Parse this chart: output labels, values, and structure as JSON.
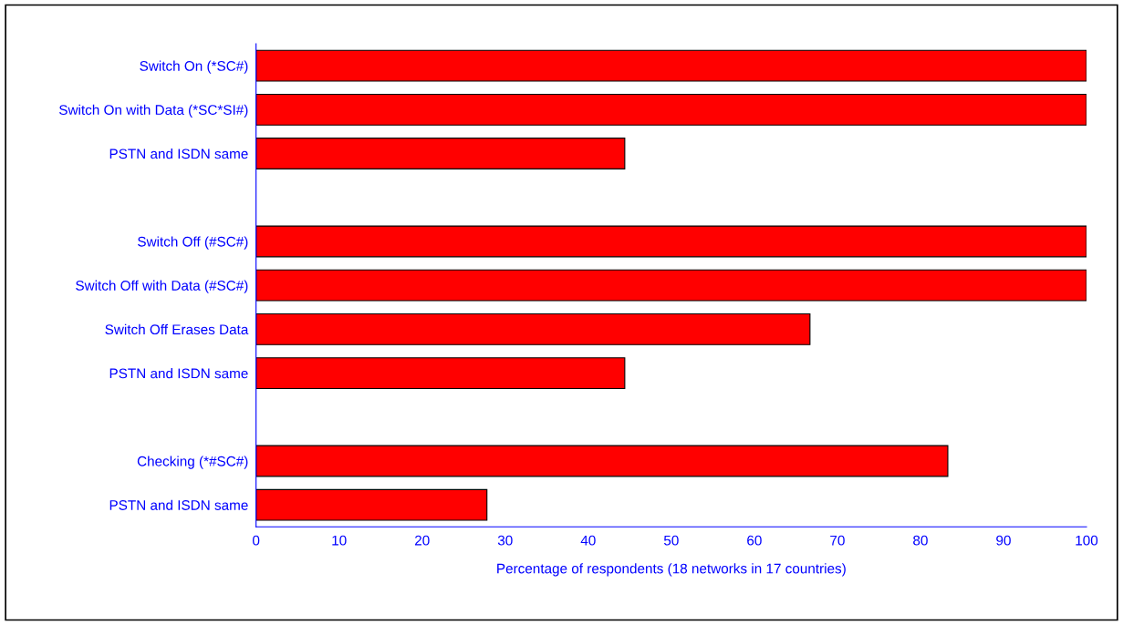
{
  "chart_data": {
    "type": "bar",
    "orientation": "horizontal",
    "categories": [
      "Switch On (*SC#)",
      "Switch On with Data (*SC*SI#)",
      "PSTN and ISDN same",
      null,
      "Switch Off (#SC#)",
      "Switch Off with Data (#SC#)",
      "Switch Off Erases Data",
      "PSTN and ISDN same",
      null,
      "Checking (*#SC#)",
      "PSTN and ISDN same"
    ],
    "values": [
      100,
      100,
      44.4,
      null,
      100,
      100,
      66.7,
      44.4,
      null,
      83.3,
      27.8
    ],
    "color": "#ff0000",
    "xlabel": "Percentage of respondents (18 networks in 17 countries)",
    "xlim": [
      0,
      100
    ],
    "xticks": [
      0,
      10,
      20,
      30,
      40,
      50,
      60,
      70,
      80,
      90,
      100
    ]
  }
}
